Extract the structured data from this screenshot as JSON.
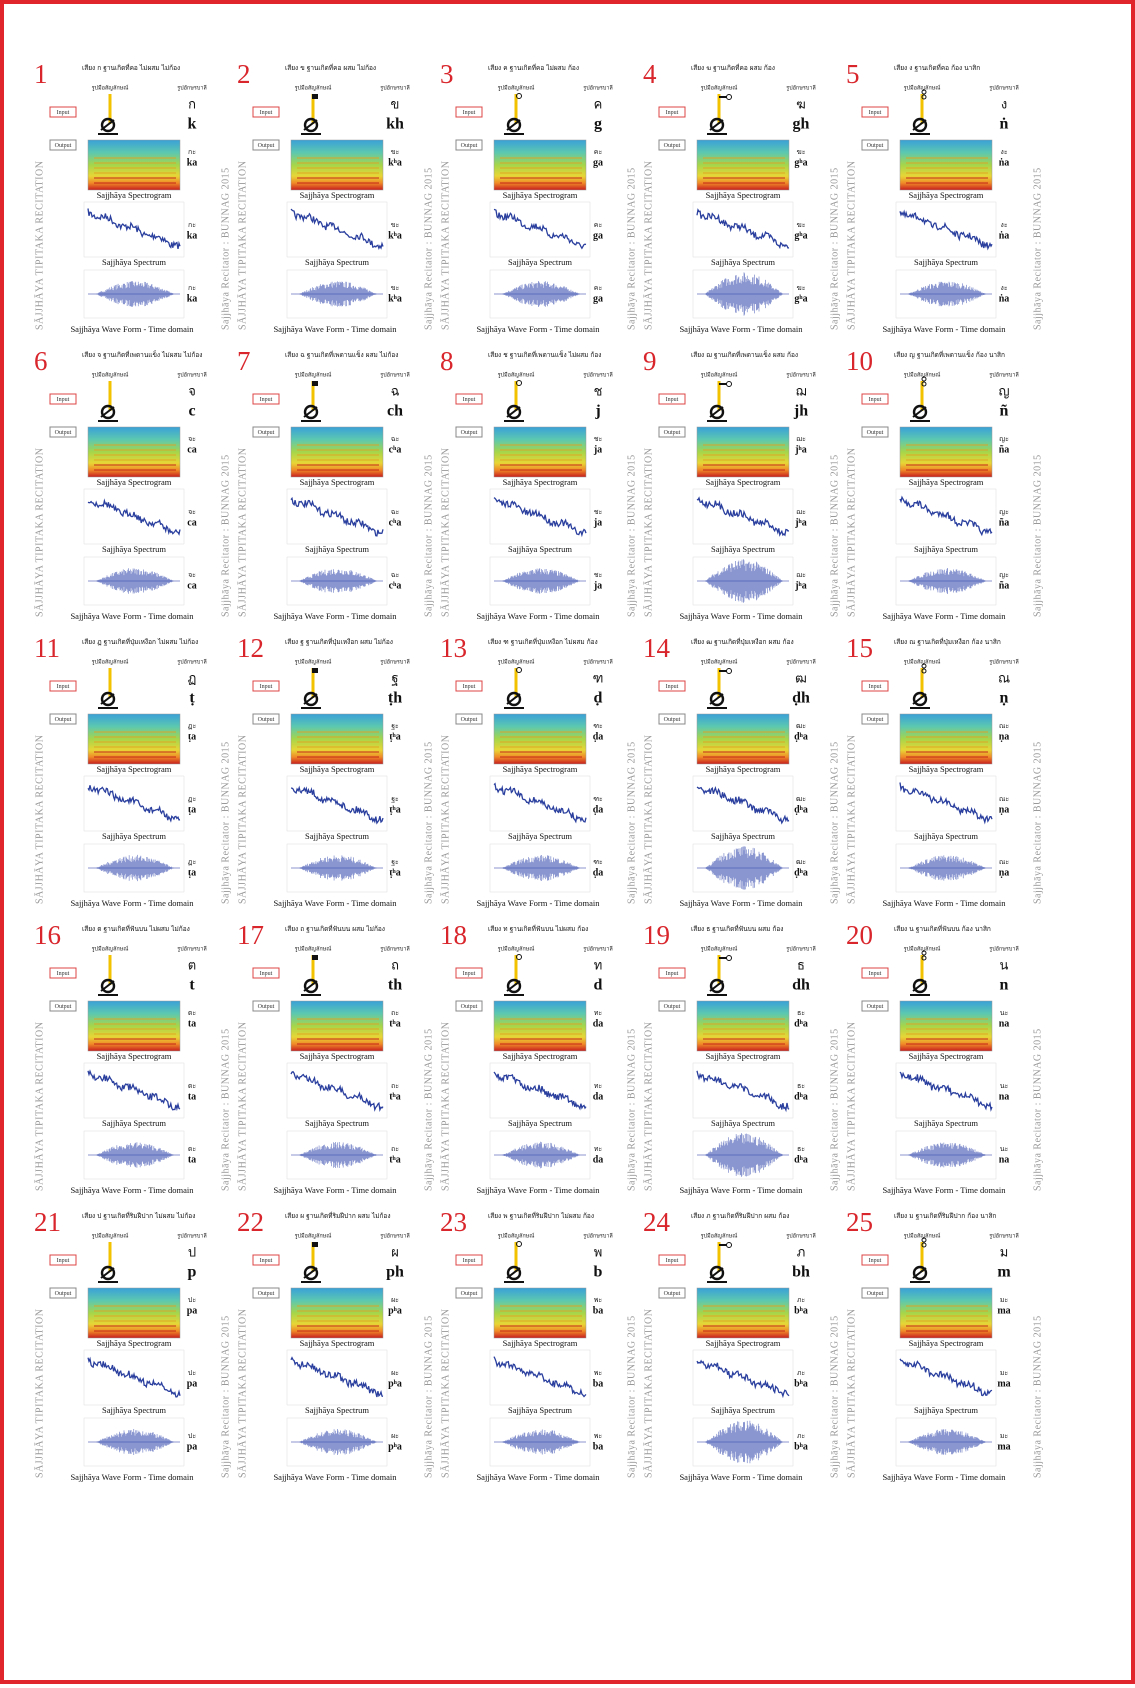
{
  "labels": {
    "hand": "รูปมือสัญลักษณ์",
    "letter": "รูปอักษรบาลี",
    "input": "Input",
    "output": "Output",
    "spectrogram": "Sajjhāya Spectrogram",
    "spectrum": "Sajjhāya Spectrum",
    "waveform": "Sajjhāya Wave Form - Time domain",
    "side_left": "SĀJJHĀYA TIPITAKA RECITATION",
    "side_right": "Sajjhāya Recitator : BUNNAG 2015"
  },
  "cells": [
    {
      "number": "1",
      "header": "เสียง ก ฐานเกิดที่คอ ไม่ผสม ไม่ก้อง",
      "letter": "ก",
      "roman": "k",
      "syllable_thai": "กะ",
      "syllable_roman": "ka"
    },
    {
      "number": "2",
      "header": "เสียง ข ฐานเกิดที่คอ ผสม ไม่ก้อง",
      "letter": "ข",
      "roman": "kh",
      "syllable_thai": "ขะ",
      "syllable_roman": "kʰa"
    },
    {
      "number": "3",
      "header": "เสียง ค ฐานเกิดที่คอ ไม่ผสม ก้อง",
      "letter": "ค",
      "roman": "g",
      "syllable_thai": "คะ",
      "syllable_roman": "ga"
    },
    {
      "number": "4",
      "header": "เสียง ฆ ฐานเกิดที่คอ ผสม ก้อง",
      "letter": "ฆ",
      "roman": "gh",
      "syllable_thai": "ฆะ",
      "syllable_roman": "gʰa"
    },
    {
      "number": "5",
      "header": "เสียง ง ฐานเกิดที่คอ ก้อง นาสิก",
      "letter": "ง",
      "roman": "ṅ",
      "syllable_thai": "งะ",
      "syllable_roman": "ṅa"
    },
    {
      "number": "6",
      "header": "เสียง จ ฐานเกิดที่เพดานแข็ง ไม่ผสม ไม่ก้อง",
      "letter": "จ",
      "roman": "c",
      "syllable_thai": "จะ",
      "syllable_roman": "ca"
    },
    {
      "number": "7",
      "header": "เสียง ฉ ฐานเกิดที่เพดานแข็ง ผสม ไม่ก้อง",
      "letter": "ฉ",
      "roman": "ch",
      "syllable_thai": "ฉะ",
      "syllable_roman": "cʰa"
    },
    {
      "number": "8",
      "header": "เสียง ช ฐานเกิดที่เพดานแข็ง ไม่ผสม ก้อง",
      "letter": "ช",
      "roman": "j",
      "syllable_thai": "ชะ",
      "syllable_roman": "ja"
    },
    {
      "number": "9",
      "header": "เสียง ฌ ฐานเกิดที่เพดานแข็ง ผสม ก้อง",
      "letter": "ฌ",
      "roman": "jh",
      "syllable_thai": "ฌะ",
      "syllable_roman": "jʰa"
    },
    {
      "number": "10",
      "header": "เสียง ญ ฐานเกิดที่เพดานแข็ง ก้อง นาสิก",
      "letter": "ญ",
      "roman": "ñ",
      "syllable_thai": "ญะ",
      "syllable_roman": "ña"
    },
    {
      "number": "11",
      "header": "เสียง ฏ ฐานเกิดที่ปุ่มเหงือก ไม่ผสม ไม่ก้อง",
      "letter": "ฏ",
      "roman": "ṭ",
      "syllable_thai": "ฏะ",
      "syllable_roman": "ṭa"
    },
    {
      "number": "12",
      "header": "เสียง ฐ ฐานเกิดที่ปุ่มเหงือก ผสม ไม่ก้อง",
      "letter": "ฐ",
      "roman": "ṭh",
      "syllable_thai": "ฐะ",
      "syllable_roman": "ṭʰa"
    },
    {
      "number": "13",
      "header": "เสียง ฑ ฐานเกิดที่ปุ่มเหงือก ไม่ผสม ก้อง",
      "letter": "ฑ",
      "roman": "ḍ",
      "syllable_thai": "ฑะ",
      "syllable_roman": "ḍa"
    },
    {
      "number": "14",
      "header": "เสียง ฒ ฐานเกิดที่ปุ่มเหงือก ผสม ก้อง",
      "letter": "ฒ",
      "roman": "ḍh",
      "syllable_thai": "ฒะ",
      "syllable_roman": "ḍʰa"
    },
    {
      "number": "15",
      "header": "เสียง ณ ฐานเกิดที่ปุ่มเหงือก ก้อง นาสิก",
      "letter": "ณ",
      "roman": "ṇ",
      "syllable_thai": "ณะ",
      "syllable_roman": "ṇa"
    },
    {
      "number": "16",
      "header": "เสียง ต ฐานเกิดที่ฟันบน ไม่ผสม ไม่ก้อง",
      "letter": "ต",
      "roman": "t",
      "syllable_thai": "ตะ",
      "syllable_roman": "ta"
    },
    {
      "number": "17",
      "header": "เสียง ถ ฐานเกิดที่ฟันบน ผสม ไม่ก้อง",
      "letter": "ถ",
      "roman": "th",
      "syllable_thai": "ถะ",
      "syllable_roman": "tʰa"
    },
    {
      "number": "18",
      "header": "เสียง ท ฐานเกิดที่ฟันบน ไม่ผสม ก้อง",
      "letter": "ท",
      "roman": "d",
      "syllable_thai": "ทะ",
      "syllable_roman": "da"
    },
    {
      "number": "19",
      "header": "เสียง ธ ฐานเกิดที่ฟันบน ผสม ก้อง",
      "letter": "ธ",
      "roman": "dh",
      "syllable_thai": "ธะ",
      "syllable_roman": "dʰa"
    },
    {
      "number": "20",
      "header": "เสียง น ฐานเกิดที่ฟันบน ก้อง นาสิก",
      "letter": "น",
      "roman": "n",
      "syllable_thai": "นะ",
      "syllable_roman": "na"
    },
    {
      "number": "21",
      "header": "เสียง ป ฐานเกิดที่ริมฝีปาก ไม่ผสม ไม่ก้อง",
      "letter": "ป",
      "roman": "p",
      "syllable_thai": "ปะ",
      "syllable_roman": "pa"
    },
    {
      "number": "22",
      "header": "เสียง ผ ฐานเกิดที่ริมฝีปาก ผสม ไม่ก้อง",
      "letter": "ผ",
      "roman": "ph",
      "syllable_thai": "ผะ",
      "syllable_roman": "pʰa"
    },
    {
      "number": "23",
      "header": "เสียง พ ฐานเกิดที่ริมฝีปาก ไม่ผสม ก้อง",
      "letter": "พ",
      "roman": "b",
      "syllable_thai": "พะ",
      "syllable_roman": "ba"
    },
    {
      "number": "24",
      "header": "เสียง ภ ฐานเกิดที่ริมฝีปาก ผสม ก้อง",
      "letter": "ภ",
      "roman": "bh",
      "syllable_thai": "ภะ",
      "syllable_roman": "bʰa"
    },
    {
      "number": "25",
      "header": "เสียง ม ฐานเกิดที่ริมฝีปาก ก้อง นาสิก",
      "letter": "ม",
      "roman": "m",
      "syllable_thai": "มะ",
      "syllable_roman": "ma"
    }
  ]
}
